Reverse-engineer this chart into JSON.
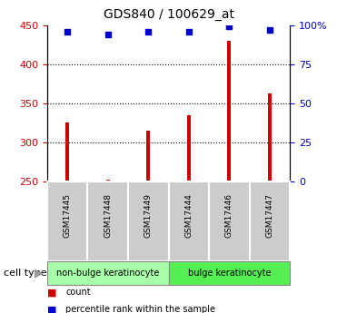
{
  "title": "GDS840 / 100629_at",
  "samples": [
    "GSM17445",
    "GSM17448",
    "GSM17449",
    "GSM17444",
    "GSM17446",
    "GSM17447"
  ],
  "counts": [
    325,
    253,
    315,
    335,
    430,
    363
  ],
  "percentiles": [
    96,
    94,
    96,
    96,
    99,
    97
  ],
  "ylim_left": [
    250,
    450
  ],
  "ylim_right": [
    0,
    100
  ],
  "yticks_left": [
    250,
    300,
    350,
    400,
    450
  ],
  "ytick_labels_left": [
    "250",
    "300",
    "350",
    "400",
    "450"
  ],
  "yticks_right": [
    0,
    25,
    50,
    75,
    100
  ],
  "ytick_labels_right": [
    "0",
    "25",
    "50",
    "75",
    "100%"
  ],
  "bar_color": "#cc0000",
  "marker_color": "#0000cc",
  "group1_label": "non-bulge keratinocyte",
  "group2_label": "bulge keratinocyte",
  "group1_indices": [
    0,
    1,
    2
  ],
  "group2_indices": [
    3,
    4,
    5
  ],
  "group1_color": "#aaffaa",
  "group2_color": "#55ee55",
  "sample_box_color": "#cccccc",
  "legend_count_label": "count",
  "legend_pct_label": "percentile rank within the sample",
  "cell_type_label": "cell type",
  "grid_lines": [
    300,
    350,
    400
  ],
  "bar_width": 0.08
}
